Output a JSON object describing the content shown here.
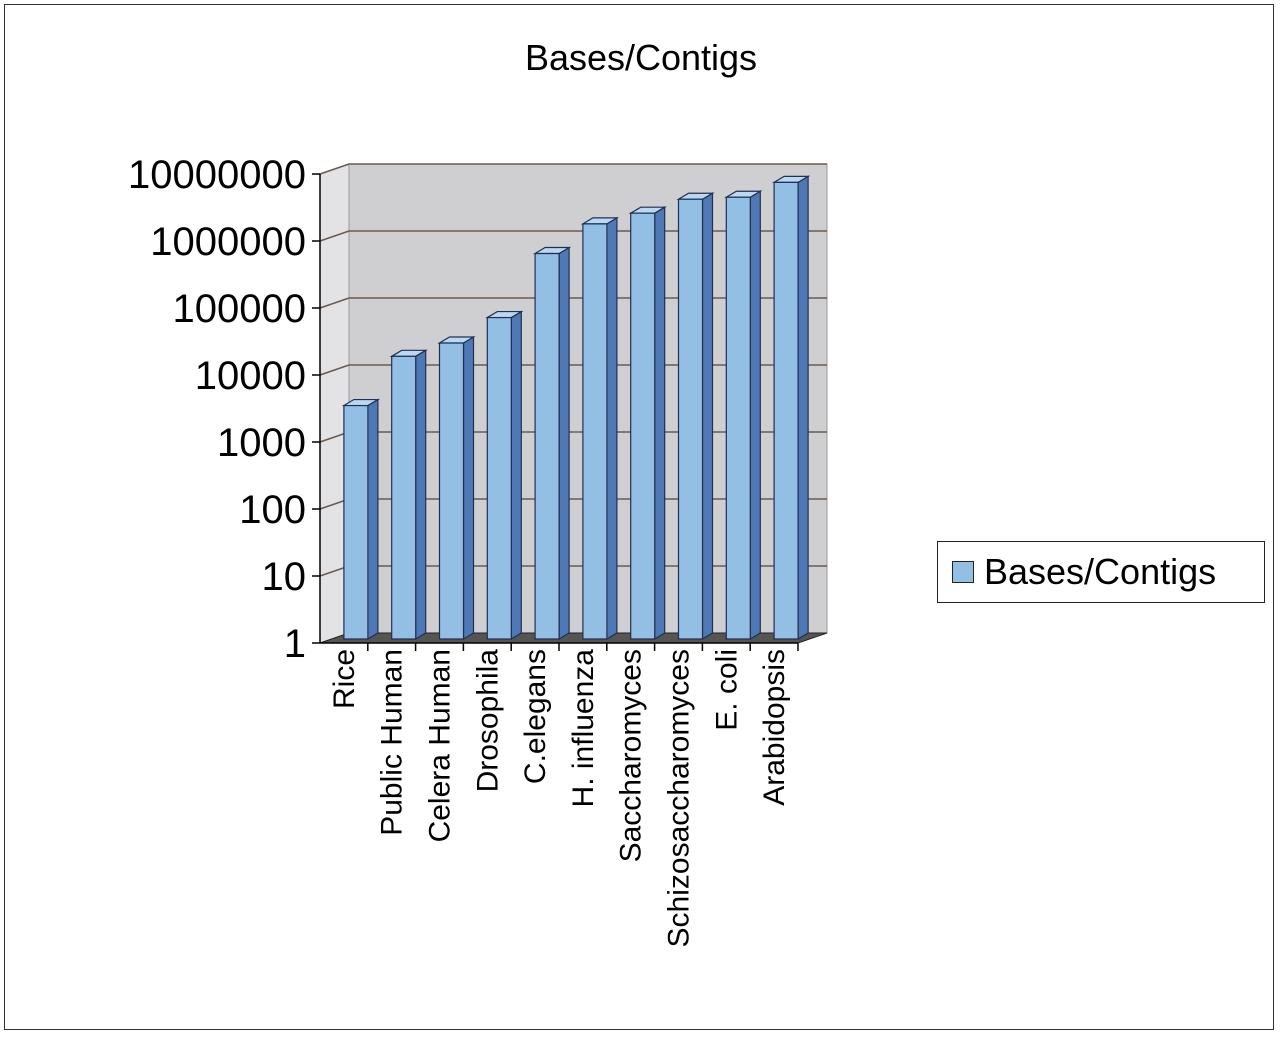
{
  "chart_data": {
    "type": "bar",
    "title": "Bases/Contigs",
    "xlabel": "",
    "ylabel": "",
    "scale": "log",
    "ylim": [
      1,
      10000000
    ],
    "y_ticks": [
      "1",
      "10",
      "100",
      "1000",
      "10000",
      "100000",
      "1000000",
      "10000000"
    ],
    "categories": [
      "Rice",
      "Public Human",
      "Celera Human",
      "Drosophila",
      "C.elegans",
      "H. influenza",
      "Saccharomyces",
      "Schizosaccharomyces",
      "E. coli",
      "Arabidopsis"
    ],
    "series": [
      {
        "name": "Bases/Contigs",
        "values": [
          3500,
          19000,
          30000,
          72000,
          650000,
          1800000,
          2600000,
          4200000,
          4500000,
          7500000
        ]
      }
    ],
    "grid": true,
    "legend_position": "right",
    "three_d": true
  },
  "colors": {
    "bar_front": "#93bfe4",
    "bar_side": "#4f79b4",
    "bar_top": "#bcd8f0",
    "wall": "#cfcfd1",
    "floor": "#555555",
    "gridline": "#6b5a50"
  }
}
